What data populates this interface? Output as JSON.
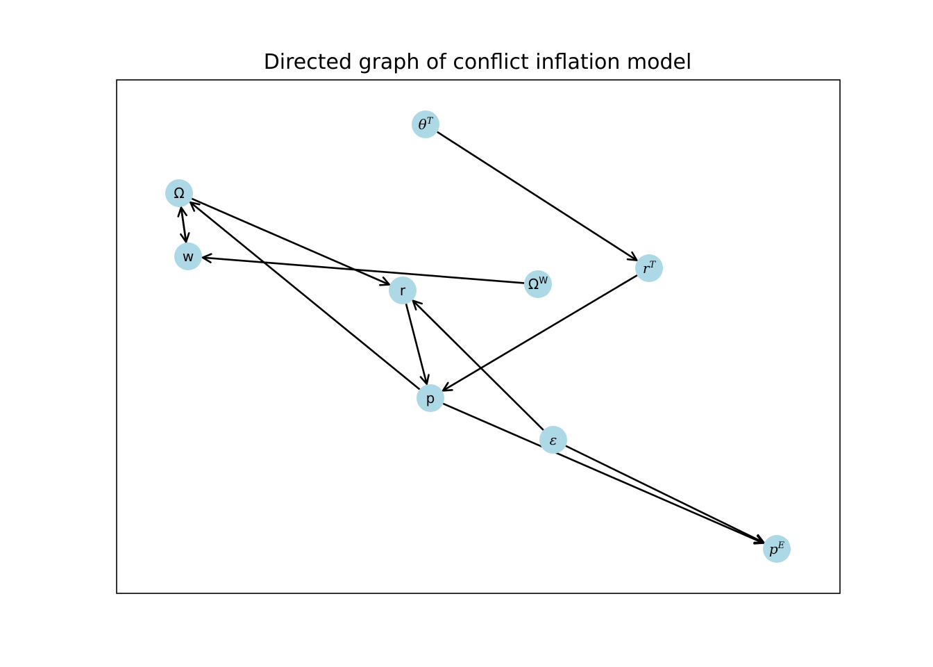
{
  "figure": {
    "title": "Directed graph of conflict inflation model"
  },
  "style": {
    "node_fill": "#add8e6",
    "edge_color": "#000000",
    "frame_color": "#000000"
  },
  "nodes": [
    {
      "id": "thetaT",
      "base": "θ",
      "sup": "T",
      "italic": true
    },
    {
      "id": "Omega",
      "base": "Ω",
      "sup": "",
      "italic": false
    },
    {
      "id": "w",
      "base": "w",
      "sup": "",
      "italic": false
    },
    {
      "id": "rT",
      "base": "r",
      "sup": "T",
      "italic": true
    },
    {
      "id": "OmegaW",
      "base": "Ω",
      "sup": "W",
      "italic": false
    },
    {
      "id": "r",
      "base": "r",
      "sup": "",
      "italic": false
    },
    {
      "id": "p",
      "base": "p",
      "sup": "",
      "italic": false
    },
    {
      "id": "eps",
      "base": "ε",
      "sup": "",
      "italic": true
    },
    {
      "id": "pE",
      "base": "p",
      "sup": "E",
      "italic": true
    }
  ],
  "edges": [
    {
      "from": "thetaT",
      "to": "rT"
    },
    {
      "from": "Omega",
      "to": "w"
    },
    {
      "from": "w",
      "to": "Omega"
    },
    {
      "from": "Omega",
      "to": "r"
    },
    {
      "from": "OmegaW",
      "to": "w"
    },
    {
      "from": "rT",
      "to": "p"
    },
    {
      "from": "r",
      "to": "p"
    },
    {
      "from": "p",
      "to": "Omega"
    },
    {
      "from": "p",
      "to": "pE"
    },
    {
      "from": "eps",
      "to": "r"
    },
    {
      "from": "eps",
      "to": "pE"
    }
  ]
}
